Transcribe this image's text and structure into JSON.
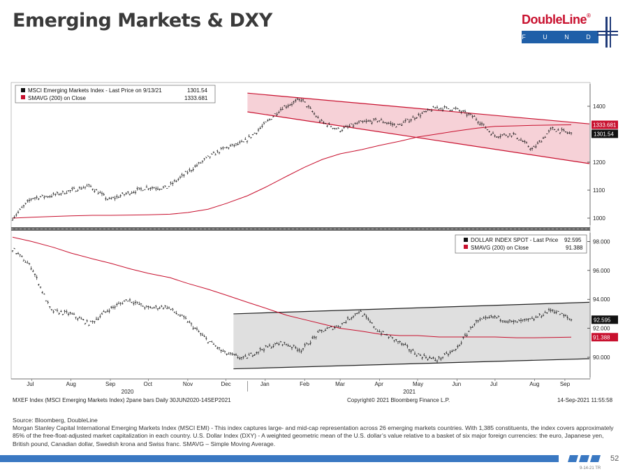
{
  "page": {
    "title": "Emerging Markets & DXY",
    "logo": {
      "brand": "DoubleLine",
      "sub": "F U N D S"
    },
    "page_number": "52",
    "code": "9-14-21 TR"
  },
  "footer_strip": {
    "left": "MXEF Index (MSCI Emerging Markets Index) 2pane bars  Daily 30JUN2020-14SEP2021",
    "center": "Copyright© 2021 Bloomberg Finance L.P.",
    "right": "14-Sep-2021 11:55:58"
  },
  "footnotes": {
    "source": "Source: Bloomberg, DoubleLine",
    "line1": "Morgan Stanley Capital International Emerging Markets Index (MSCI EMI) -  This index captures large- and mid-cap representation across 26 emerging markets countries. With 1,385 constituents, the index covers approximately 85% of the free-float-adjusted market capitalization in each country. U.S. Dollar Index (DXY) -  A weighted geometric mean of the U.S. dollar’s value relative to a basket of six major foreign currencies: the euro, Japanese yen, British pound, Canadian dollar, Swedish krona and Swiss franc. SMAVG – Simple Moving Average."
  },
  "colors": {
    "price": "#111111",
    "sma": "#c8102e",
    "channel_em": "#f4c9d0",
    "channel_dxy": "#d9d9d9",
    "accent_blue": "#3a78c2"
  },
  "chart_data": [
    {
      "type": "line",
      "pane": "top",
      "legend": [
        {
          "label": "MSCI Emerging Markets Index - Last Price on 9/13/21",
          "value": "1301.54",
          "color": "#111111"
        },
        {
          "label": "SMAVG (200)  on Close",
          "value": "1333.681",
          "color": "#c8102e"
        }
      ],
      "yticks": [
        "1000",
        "1100",
        "1200",
        "1400"
      ],
      "ylim": [
        975,
        1480
      ],
      "last_labels": {
        "price": "1301.54",
        "sma": "1333.681"
      },
      "x": [
        "2020-06-30",
        "2020-07-15",
        "2020-08-01",
        "2020-08-15",
        "2020-09-01",
        "2020-09-15",
        "2020-10-01",
        "2020-10-15",
        "2020-11-01",
        "2020-11-15",
        "2020-12-01",
        "2020-12-15",
        "2021-01-01",
        "2021-01-15",
        "2021-02-01",
        "2021-02-15",
        "2021-03-01",
        "2021-03-15",
        "2021-04-01",
        "2021-04-15",
        "2021-05-01",
        "2021-05-15",
        "2021-06-01",
        "2021-06-15",
        "2021-07-01",
        "2021-07-15",
        "2021-08-01",
        "2021-08-15",
        "2021-09-01",
        "2021-09-13"
      ],
      "series": [
        {
          "name": "MSCI Emerging Markets Index",
          "values": [
            1000,
            1072,
            1080,
            1098,
            1115,
            1065,
            1090,
            1110,
            1108,
            1160,
            1210,
            1250,
            1270,
            1330,
            1395,
            1425,
            1345,
            1315,
            1340,
            1350,
            1330,
            1365,
            1395,
            1390,
            1360,
            1295,
            1300,
            1245,
            1320,
            1301.54
          ]
        },
        {
          "name": "SMAVG (200)",
          "values": [
            1000,
            1003,
            1006,
            1008,
            1010,
            1010,
            1011,
            1012,
            1014,
            1020,
            1032,
            1052,
            1080,
            1110,
            1150,
            1182,
            1210,
            1230,
            1245,
            1260,
            1275,
            1290,
            1302,
            1312,
            1322,
            1328,
            1330,
            1332,
            1333,
            1333.681
          ]
        }
      ],
      "channel": {
        "upper": [
          1447,
          1337
        ],
        "lower": [
          1380,
          1195
        ]
      }
    },
    {
      "type": "line",
      "pane": "bottom",
      "legend": [
        {
          "label": "DOLLAR INDEX SPOT - Last Price",
          "value": "92.595",
          "color": "#111111"
        },
        {
          "label": "SMAVG (200)  on Close",
          "value": "91.388",
          "color": "#c8102e"
        }
      ],
      "yticks": [
        "90.000",
        "92.000",
        "94.000",
        "96.000",
        "98.000"
      ],
      "ylim": [
        88.6,
        98.6
      ],
      "last_labels": {
        "price": "92.595",
        "sma": "91.388"
      },
      "x": [
        "2020-06-30",
        "2020-07-15",
        "2020-08-01",
        "2020-08-15",
        "2020-09-01",
        "2020-09-15",
        "2020-10-01",
        "2020-10-15",
        "2020-11-01",
        "2020-11-15",
        "2020-12-01",
        "2020-12-15",
        "2021-01-01",
        "2021-01-15",
        "2021-02-01",
        "2021-02-15",
        "2021-03-01",
        "2021-03-15",
        "2021-04-01",
        "2021-04-15",
        "2021-05-01",
        "2021-05-15",
        "2021-06-01",
        "2021-06-15",
        "2021-07-01",
        "2021-07-15",
        "2021-08-01",
        "2021-08-15",
        "2021-09-01",
        "2021-09-13"
      ],
      "series": [
        {
          "name": "DOLLAR INDEX SPOT",
          "values": [
            97.5,
            96.2,
            93.2,
            93.0,
            92.3,
            93.3,
            94.0,
            93.4,
            93.5,
            92.6,
            91.3,
            90.3,
            89.9,
            90.6,
            91.0,
            90.5,
            91.8,
            92.2,
            93.2,
            91.8,
            91.1,
            90.2,
            89.8,
            90.5,
            92.4,
            92.8,
            92.4,
            92.6,
            93.3,
            92.595
          ]
        },
        {
          "name": "SMAVG (200)",
          "values": [
            98.3,
            98.0,
            97.6,
            97.2,
            96.8,
            96.5,
            96.1,
            95.8,
            95.5,
            95.1,
            94.7,
            94.3,
            93.8,
            93.4,
            92.9,
            92.6,
            92.3,
            92.0,
            91.8,
            91.6,
            91.5,
            91.5,
            91.4,
            91.4,
            91.4,
            91.4,
            91.35,
            91.35,
            91.37,
            91.388
          ]
        }
      ],
      "channel": {
        "upper": [
          93.0,
          93.8
        ],
        "lower": [
          89.2,
          89.9
        ]
      }
    }
  ],
  "x_axis": {
    "months": [
      "Jul",
      "Aug",
      "Sep",
      "Oct",
      "Nov",
      "Dec",
      "Jan",
      "Feb",
      "Mar",
      "Apr",
      "May",
      "Jun",
      "Jul",
      "Aug",
      "Sep"
    ],
    "years": [
      "2020",
      "2021"
    ]
  }
}
